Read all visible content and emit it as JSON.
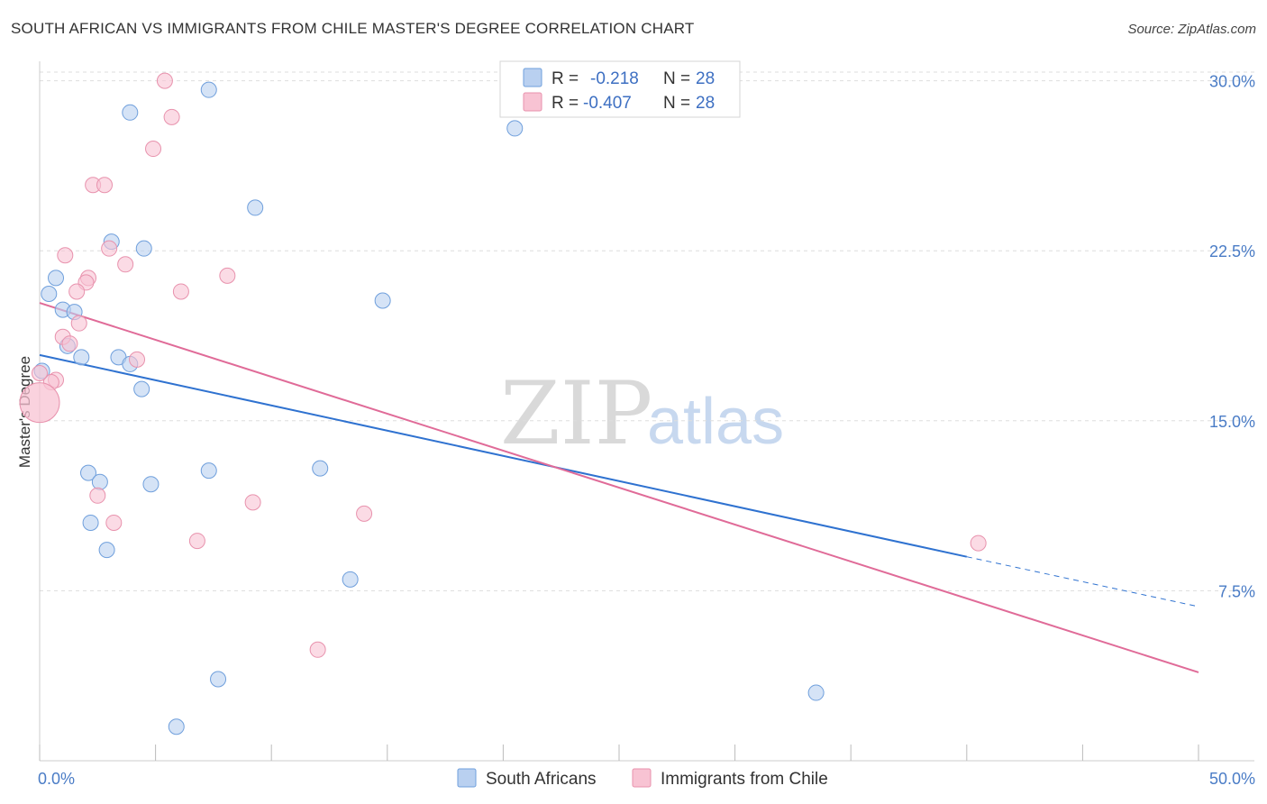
{
  "title": "SOUTH AFRICAN VS IMMIGRANTS FROM CHILE MASTER'S DEGREE CORRELATION CHART",
  "source": "Source: ZipAtlas.com",
  "watermark": {
    "zip": "ZIP",
    "atlas": "atlas"
  },
  "colors": {
    "blue_fill": "#b9d0f0",
    "blue_stroke": "#6f9fdc",
    "blue_line": "#2f72d0",
    "pink_fill": "#f8c3d3",
    "pink_stroke": "#e892ad",
    "pink_line": "#e06b98",
    "grid": "#dddddd",
    "tick_text": "#4a7cc6"
  },
  "legend": {
    "rows": [
      {
        "r_label": "R =",
        "r_value": "-0.218",
        "n_label": "N =",
        "n_value": "28"
      },
      {
        "r_label": "R =",
        "r_value": "-0.407",
        "n_label": "N =",
        "n_value": "28"
      }
    ]
  },
  "chart_data": {
    "type": "scatter",
    "ylabel": "Master's Degree",
    "x_tick_labels": [
      "0.0%",
      "50.0%"
    ],
    "y_tick_labels": [
      "7.5%",
      "15.0%",
      "22.5%",
      "30.0%"
    ],
    "xlim": [
      0,
      50
    ],
    "ylim": [
      0,
      30.7
    ],
    "y_ticks": [
      7.5,
      15.0,
      22.5,
      30.0
    ],
    "grid": true,
    "legend_position": "top-center",
    "series": [
      {
        "name": "South Africans",
        "color": "#b9d0f0",
        "points": [
          [
            7.3,
            29.6
          ],
          [
            3.9,
            28.6
          ],
          [
            20.5,
            27.9
          ],
          [
            9.3,
            24.4
          ],
          [
            3.1,
            22.9
          ],
          [
            4.5,
            22.6
          ],
          [
            0.7,
            21.3
          ],
          [
            0.4,
            20.6
          ],
          [
            14.8,
            20.3
          ],
          [
            1.0,
            19.9
          ],
          [
            1.5,
            19.8
          ],
          [
            1.2,
            18.3
          ],
          [
            1.8,
            17.8
          ],
          [
            3.4,
            17.8
          ],
          [
            3.9,
            17.5
          ],
          [
            0.1,
            17.2
          ],
          [
            4.4,
            16.4
          ],
          [
            2.1,
            12.7
          ],
          [
            2.6,
            12.3
          ],
          [
            4.8,
            12.2
          ],
          [
            7.3,
            12.8
          ],
          [
            12.1,
            12.9
          ],
          [
            2.2,
            10.5
          ],
          [
            2.9,
            9.3
          ],
          [
            13.4,
            8.0
          ],
          [
            7.7,
            3.6
          ],
          [
            33.5,
            3.0
          ],
          [
            5.9,
            1.5
          ]
        ],
        "trend": {
          "x": [
            0,
            40
          ],
          "y": [
            17.9,
            9.0
          ]
        },
        "trend_extension": {
          "x": [
            40,
            50
          ],
          "y": [
            9.0,
            6.8
          ]
        }
      },
      {
        "name": "Immigrants from Chile",
        "color": "#f8c3d3",
        "points": [
          [
            5.4,
            30.0
          ],
          [
            5.7,
            28.4
          ],
          [
            4.9,
            27.0
          ],
          [
            2.3,
            25.4
          ],
          [
            2.8,
            25.4
          ],
          [
            1.1,
            22.3
          ],
          [
            3.0,
            22.6
          ],
          [
            3.7,
            21.9
          ],
          [
            8.1,
            21.4
          ],
          [
            2.1,
            21.3
          ],
          [
            2.0,
            21.1
          ],
          [
            1.6,
            20.7
          ],
          [
            6.1,
            20.7
          ],
          [
            1.7,
            19.3
          ],
          [
            1.0,
            18.7
          ],
          [
            1.3,
            18.4
          ],
          [
            4.2,
            17.7
          ],
          [
            0.7,
            16.8
          ],
          [
            0.5,
            16.7
          ],
          [
            0.0,
            17.1
          ],
          [
            0.0,
            15.8
          ],
          [
            2.5,
            11.7
          ],
          [
            9.2,
            11.4
          ],
          [
            3.2,
            10.5
          ],
          [
            14.0,
            10.9
          ],
          [
            6.8,
            9.7
          ],
          [
            12.0,
            4.9
          ],
          [
            40.5,
            9.6
          ]
        ],
        "trend": {
          "x": [
            0,
            50
          ],
          "y": [
            20.2,
            3.9
          ]
        }
      }
    ]
  }
}
